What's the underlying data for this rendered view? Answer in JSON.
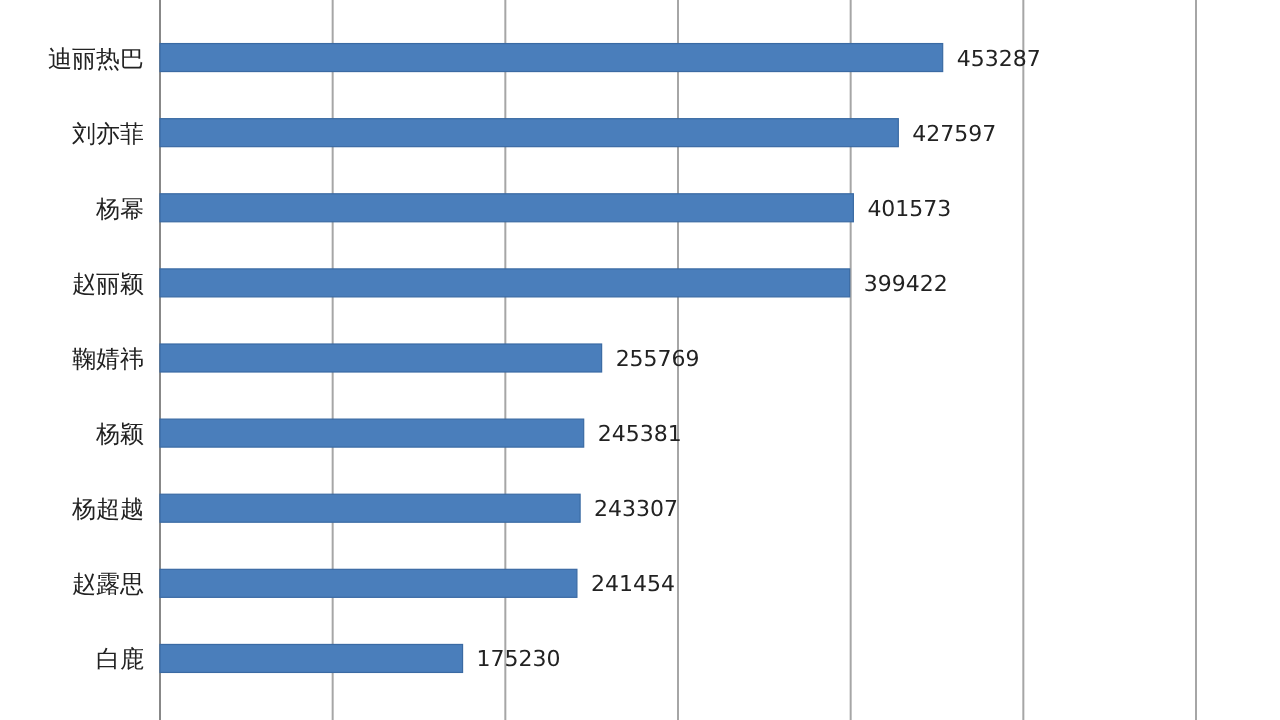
{
  "chart_data": {
    "type": "bar",
    "orientation": "horizontal",
    "categories": [
      "迪丽热巴",
      "刘亦菲",
      "杨幂",
      "赵丽颖",
      "鞠婧祎",
      "杨颖",
      "杨超越",
      "赵露思",
      "白鹿"
    ],
    "values": [
      453287,
      427597,
      401573,
      399422,
      255769,
      245381,
      243307,
      241454,
      175230
    ],
    "color": "#4a7ebb",
    "data_labels": true,
    "grid": "x",
    "tick_labels": "y",
    "xlim": [
      0,
      600000
    ],
    "xticks": [
      {
        "value": 0,
        "label": null
      },
      {
        "value": 100000,
        "label": null
      },
      {
        "value": 200000,
        "label": null
      },
      {
        "value": 300000,
        "label": null
      },
      {
        "value": 400000,
        "label": null
      },
      {
        "value": 500000,
        "label": null
      },
      {
        "value": 600000,
        "label": null
      }
    ]
  }
}
